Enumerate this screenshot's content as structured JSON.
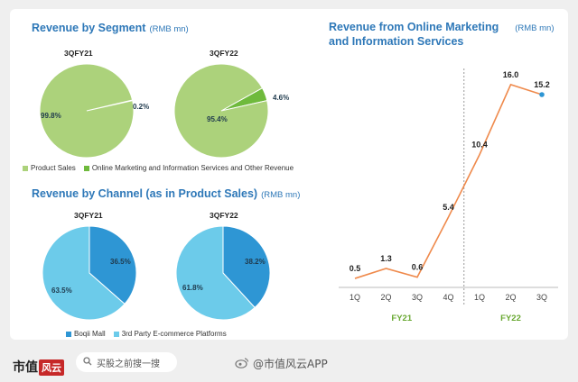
{
  "titles": {
    "segment": "Revenue by Segment",
    "segment_unit": "(RMB mn)",
    "channel": "Revenue by Channel (as in Product Sales)",
    "channel_unit": "(RMB mn)",
    "online_line1": "Revenue from Online Marketing",
    "online_line2": "and Information Services",
    "online_unit": "(RMB mn)"
  },
  "colors": {
    "product_sales": "#acd27b",
    "online_marketing": "#6fba3c",
    "boqii_mall": "#2e96d4",
    "third_party": "#6ccbea",
    "line": "#ef8a4c",
    "title": "#2e78b8",
    "fy_label": "#6aa933"
  },
  "legends": {
    "segment": [
      "Product Sales",
      "Online Marketing and Information Services and Other Revenue"
    ],
    "channel": [
      "Boqii Mall",
      "3rd Party E-commerce Platforms"
    ]
  },
  "footer": {
    "brand": "市值",
    "brand2": "风云",
    "search": "买股之前搜一搜",
    "weibo": "@市值风云APP"
  },
  "chart_data": [
    {
      "type": "pie",
      "title": "Revenue by Segment",
      "subtitle": "3QFY21",
      "categories": [
        "Product Sales",
        "Online Marketing and Information Services and Other Revenue"
      ],
      "values": [
        99.8,
        0.2
      ],
      "labels": [
        "99.8%",
        "0.2%"
      ]
    },
    {
      "type": "pie",
      "title": "Revenue by Segment",
      "subtitle": "3QFY22",
      "categories": [
        "Product Sales",
        "Online Marketing and Information Services and Other Revenue"
      ],
      "values": [
        95.4,
        4.6
      ],
      "labels": [
        "95.4%",
        "4.6%"
      ]
    },
    {
      "type": "pie",
      "title": "Revenue by Channel (as in Product Sales)",
      "subtitle": "3QFY21",
      "categories": [
        "Boqii Mall",
        "3rd Party E-commerce Platforms"
      ],
      "values": [
        36.5,
        63.5
      ],
      "labels": [
        "36.5%",
        "63.5%"
      ]
    },
    {
      "type": "pie",
      "title": "Revenue by Channel (as in Product Sales)",
      "subtitle": "3QFY22",
      "categories": [
        "Boqii Mall",
        "3rd Party E-commerce Platforms"
      ],
      "values": [
        38.2,
        61.8
      ],
      "labels": [
        "38.2%",
        "61.8%"
      ]
    },
    {
      "type": "line",
      "title": "Revenue from Online Marketing and Information Services",
      "unit": "(RMB mn)",
      "categories": [
        "1Q",
        "2Q",
        "3Q",
        "4Q",
        "1Q",
        "2Q",
        "3Q"
      ],
      "groups": [
        {
          "name": "FY21",
          "from": 0,
          "to": 3
        },
        {
          "name": "FY22",
          "from": 4,
          "to": 6
        }
      ],
      "values": [
        0.5,
        1.3,
        0.6,
        5.4,
        10.4,
        16.0,
        15.2
      ],
      "value_labels": [
        "0.5",
        "1.3",
        "0.6",
        "5.4",
        "10.4",
        "16.0",
        "15.2"
      ],
      "ylim": [
        0,
        17
      ],
      "grid": false
    }
  ]
}
